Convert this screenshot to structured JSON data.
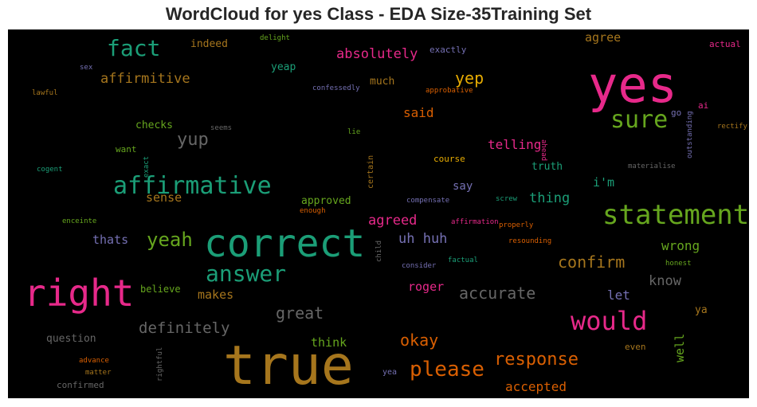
{
  "title": "WordCloud for yes Class - EDA Size-35Training Set",
  "chart_data": {
    "type": "wordcloud",
    "title": "WordCloud for yes Class - EDA Size-35Training Set",
    "background": "#000000",
    "words": [
      {
        "text": "yes",
        "color": "#e7298a",
        "weight": 1.0
      },
      {
        "text": "true",
        "color": "#a6761d",
        "weight": 0.98
      },
      {
        "text": "correct",
        "color": "#1b9e77",
        "weight": 0.74
      },
      {
        "text": "right",
        "color": "#e7298a",
        "weight": 0.7
      },
      {
        "text": "statement",
        "color": "#66a61e",
        "weight": 0.52
      },
      {
        "text": "affirmative",
        "color": "#1b9e77",
        "weight": 0.5
      },
      {
        "text": "would",
        "color": "#e7298a",
        "weight": 0.48
      },
      {
        "text": "sure",
        "color": "#66a61e",
        "weight": 0.46
      },
      {
        "text": "answer",
        "color": "#1b9e77",
        "weight": 0.42
      },
      {
        "text": "please",
        "color": "#d95f02",
        "weight": 0.4
      },
      {
        "text": "fact",
        "color": "#1b9e77",
        "weight": 0.4
      },
      {
        "text": "yeah",
        "color": "#66a61e",
        "weight": 0.36
      },
      {
        "text": "response",
        "color": "#d95f02",
        "weight": 0.34
      },
      {
        "text": "accurate",
        "color": "#666666",
        "weight": 0.33
      },
      {
        "text": "confirm",
        "color": "#a6761d",
        "weight": 0.33
      },
      {
        "text": "great",
        "color": "#666666",
        "weight": 0.32
      },
      {
        "text": "definitely",
        "color": "#666666",
        "weight": 0.32
      },
      {
        "text": "yup",
        "color": "#666666",
        "weight": 0.3
      },
      {
        "text": "okay",
        "color": "#d95f02",
        "weight": 0.3
      },
      {
        "text": "yep",
        "color": "#e6ab02",
        "weight": 0.3
      },
      {
        "text": "absolutely",
        "color": "#e7298a",
        "weight": 0.28
      },
      {
        "text": "agreed",
        "color": "#e7298a",
        "weight": 0.28
      },
      {
        "text": "affirmitive",
        "color": "#a6761d",
        "weight": 0.27
      },
      {
        "text": "know",
        "color": "#666666",
        "weight": 0.27
      },
      {
        "text": "uh huh",
        "color": "#7570b3",
        "weight": 0.27
      },
      {
        "text": "thing",
        "color": "#1b9e77",
        "weight": 0.27
      },
      {
        "text": "wrong",
        "color": "#66a61e",
        "weight": 0.26
      },
      {
        "text": "telling",
        "color": "#e7298a",
        "weight": 0.25
      },
      {
        "text": "accepted",
        "color": "#d95f02",
        "weight": 0.25
      },
      {
        "text": "thats",
        "color": "#7570b3",
        "weight": 0.25
      },
      {
        "text": "well",
        "color": "#66a61e",
        "weight": 0.25
      },
      {
        "text": "said",
        "color": "#d95f02",
        "weight": 0.24
      },
      {
        "text": "think",
        "color": "#66a61e",
        "weight": 0.24
      },
      {
        "text": "roger",
        "color": "#e7298a",
        "weight": 0.23
      },
      {
        "text": "makes",
        "color": "#a6761d",
        "weight": 0.23
      },
      {
        "text": "let",
        "color": "#7570b3",
        "weight": 0.23
      },
      {
        "text": "i'm",
        "color": "#1b9e77",
        "weight": 0.22
      },
      {
        "text": "agree",
        "color": "#a6761d",
        "weight": 0.22
      },
      {
        "text": "sense",
        "color": "#a6761d",
        "weight": 0.22
      },
      {
        "text": "question",
        "color": "#666666",
        "weight": 0.21
      },
      {
        "text": "approved",
        "color": "#66a61e",
        "weight": 0.21
      },
      {
        "text": "much",
        "color": "#a6761d",
        "weight": 0.2
      },
      {
        "text": "truth",
        "color": "#1b9e77",
        "weight": 0.2
      },
      {
        "text": "say",
        "color": "#7570b3",
        "weight": 0.2
      },
      {
        "text": "checks",
        "color": "#66a61e",
        "weight": 0.2
      },
      {
        "text": "indeed",
        "color": "#a6761d",
        "weight": 0.2
      },
      {
        "text": "yeap",
        "color": "#1b9e77",
        "weight": 0.2
      },
      {
        "text": "believe",
        "color": "#66a61e",
        "weight": 0.19
      },
      {
        "text": "confirmed",
        "color": "#666666",
        "weight": 0.19
      },
      {
        "text": "ya",
        "color": "#a6761d",
        "weight": 0.19
      },
      {
        "text": "want",
        "color": "#66a61e",
        "weight": 0.18
      },
      {
        "text": "even",
        "color": "#a6761d",
        "weight": 0.18
      },
      {
        "text": "course",
        "color": "#e6ab02",
        "weight": 0.17
      },
      {
        "text": "exactly",
        "color": "#7570b3",
        "weight": 0.17
      },
      {
        "text": "actual",
        "color": "#e7298a",
        "weight": 0.17
      },
      {
        "text": "ai",
        "color": "#e7298a",
        "weight": 0.17
      },
      {
        "text": "go",
        "color": "#7570b3",
        "weight": 0.17
      },
      {
        "text": "yea",
        "color": "#7570b3",
        "weight": 0.16
      },
      {
        "text": "certain",
        "color": "#a6761d",
        "weight": 0.15
      },
      {
        "text": "outstanding",
        "color": "#7570b3",
        "weight": 0.15
      },
      {
        "text": "delight",
        "color": "#66a61e",
        "weight": 0.14
      },
      {
        "text": "seems",
        "color": "#666666",
        "weight": 0.14
      },
      {
        "text": "rectify",
        "color": "#a6761d",
        "weight": 0.14
      },
      {
        "text": "child",
        "color": "#666666",
        "weight": 0.14
      },
      {
        "text": "factual",
        "color": "#1b9e77",
        "weight": 0.14
      },
      {
        "text": "honest",
        "color": "#66a61e",
        "weight": 0.14
      },
      {
        "text": "consider",
        "color": "#7570b3",
        "weight": 0.14
      },
      {
        "text": "resounding",
        "color": "#d95f02",
        "weight": 0.13
      },
      {
        "text": "properly",
        "color": "#d95f02",
        "weight": 0.13
      },
      {
        "text": "affirmation",
        "color": "#e7298a",
        "weight": 0.13
      },
      {
        "text": "compensate",
        "color": "#7570b3",
        "weight": 0.13
      },
      {
        "text": "screw",
        "color": "#1b9e77",
        "weight": 0.13
      },
      {
        "text": "materialise",
        "color": "#666666",
        "weight": 0.13
      },
      {
        "text": "confessedly",
        "color": "#7570b3",
        "weight": 0.13
      },
      {
        "text": "approbative",
        "color": "#d95f02",
        "weight": 0.12
      },
      {
        "text": "lie",
        "color": "#66a61e",
        "weight": 0.12
      },
      {
        "text": "ahead",
        "color": "#e7298a",
        "weight": 0.12
      },
      {
        "text": "enough",
        "color": "#d95f02",
        "weight": 0.12
      },
      {
        "text": "enceinte",
        "color": "#66a61e",
        "weight": 0.12
      },
      {
        "text": "cogent",
        "color": "#1b9e77",
        "weight": 0.12
      },
      {
        "text": "exact",
        "color": "#1b9e77",
        "weight": 0.12
      },
      {
        "text": "lawful",
        "color": "#a6761d",
        "weight": 0.12
      },
      {
        "text": "sex",
        "color": "#7570b3",
        "weight": 0.12
      },
      {
        "text": "advance",
        "color": "#d95f02",
        "weight": 0.12
      },
      {
        "text": "matter",
        "color": "#a6761d",
        "weight": 0.12
      },
      {
        "text": "rightful",
        "color": "#666666",
        "weight": 0.12
      }
    ]
  }
}
